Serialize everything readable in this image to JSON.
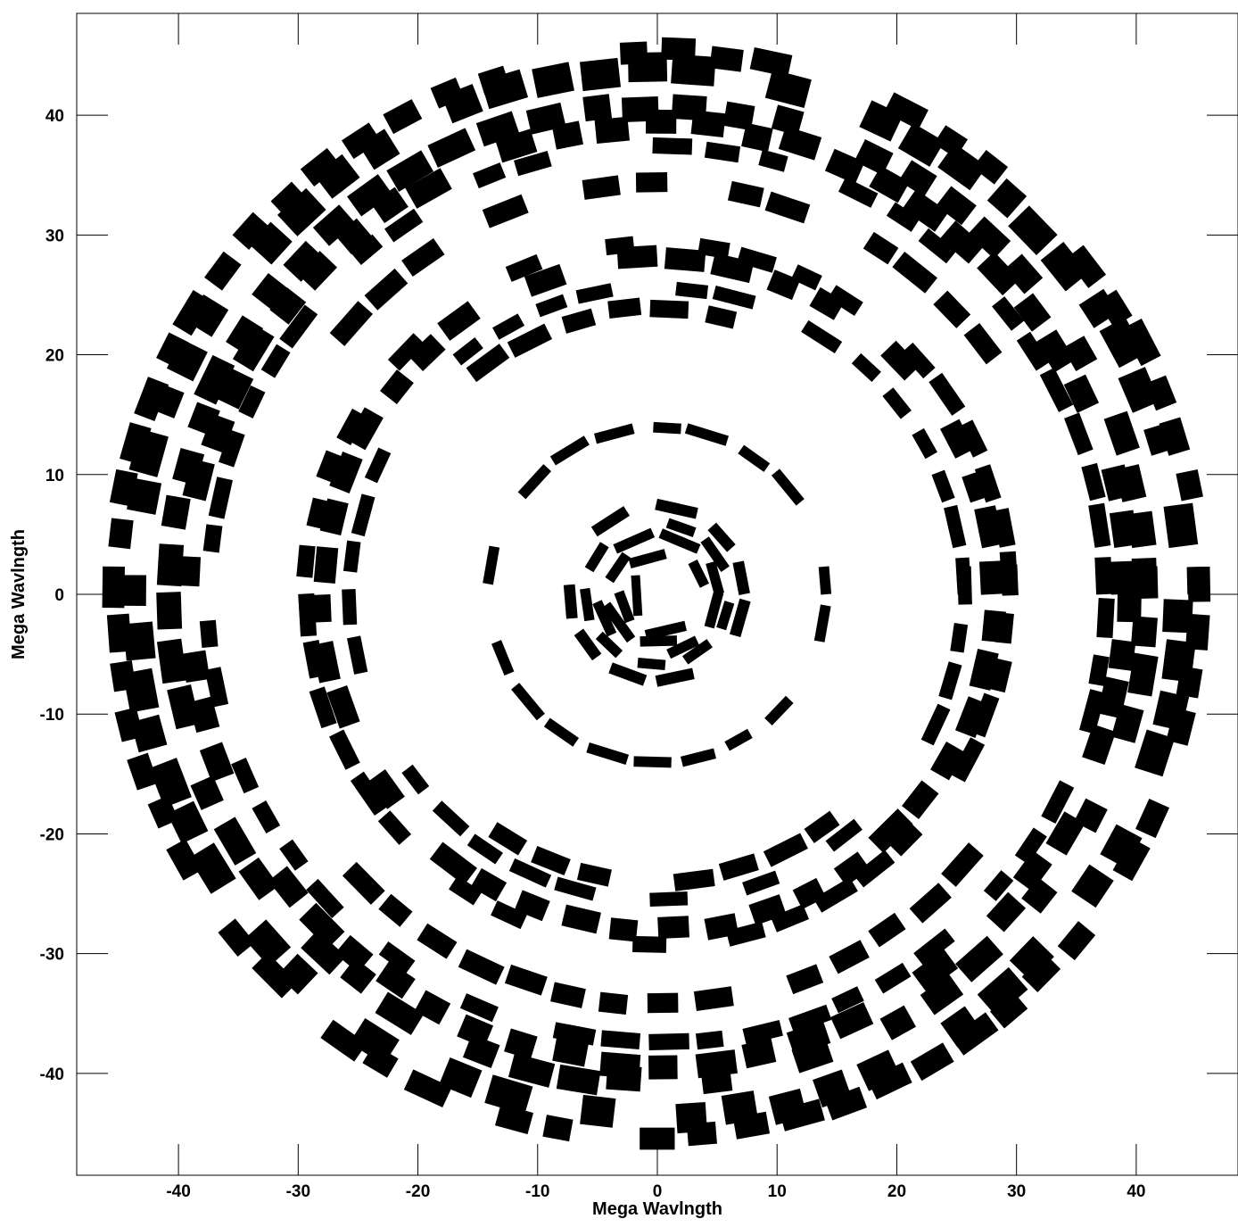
{
  "chart_data": {
    "type": "scatter",
    "title": "",
    "xlabel": "Mega Wavlngth",
    "ylabel": "Mega Wavlngth",
    "xlim": [
      -48.5,
      48.5
    ],
    "ylim": [
      -48.5,
      48.5
    ],
    "grid": false,
    "legend": "none",
    "x_ticks": [
      -40,
      -30,
      -20,
      -10,
      0,
      10,
      20,
      30,
      40
    ],
    "y_ticks": [
      -40,
      -30,
      -20,
      -10,
      0,
      10,
      20,
      30,
      40
    ],
    "x_tick_labels": [
      "-40",
      "-30",
      "-20",
      "-10",
      "0",
      "10",
      "20",
      "30",
      "40"
    ],
    "y_tick_labels": [
      "-40",
      "-30",
      "-20",
      "-10",
      "0",
      "10",
      "20",
      "30",
      "40"
    ],
    "series": [
      {
        "marker_color": "#000000",
        "tracks": [
          {
            "r": 1.8,
            "width": 0.4,
            "thickness": 0.35,
            "arcs": [
              [
                0,
                360
              ]
            ]
          },
          {
            "r": 3.0,
            "width": 0.5,
            "thickness": 0.35,
            "arcs": [
              [
                0,
                150
              ],
              [
                175,
                360
              ]
            ]
          },
          {
            "r": 3.9,
            "width": 0.5,
            "thickness": 0.35,
            "arcs": [
              [
                10,
                170
              ],
              [
                190,
                345
              ]
            ]
          },
          {
            "r": 4.9,
            "width": 0.5,
            "thickness": 0.35,
            "arcs": [
              [
                0,
                120
              ],
              [
                140,
                330
              ]
            ]
          },
          {
            "r": 5.9,
            "width": 0.5,
            "thickness": 0.35,
            "arcs": [
              [
                20,
                200
              ],
              [
                215,
                350
              ]
            ]
          },
          {
            "r": 7.2,
            "width": 0.6,
            "thickness": 0.35,
            "arcs": [
              [
                0,
                95
              ],
              [
                110,
                290
              ],
              [
                300,
                360
              ]
            ]
          },
          {
            "r": 14.0,
            "width": 0.6,
            "thickness": 0.28,
            "arcs": [
              [
                0,
                360
              ]
            ]
          },
          {
            "r": 23.9,
            "width": 1.0,
            "thickness": 0.45,
            "arcs": [
              [
                55,
                125
              ],
              [
                235,
                305
              ]
            ]
          },
          {
            "r": 25.6,
            "width": 0.8,
            "thickness": 0.35,
            "arcs": [
              [
                0,
                360
              ]
            ]
          },
          {
            "r": 28.0,
            "width": 1.4,
            "thickness": 0.4,
            "arcs": [
              [
                0,
                360
              ]
            ]
          },
          {
            "r": 29.3,
            "width": 1.0,
            "thickness": 0.35,
            "arcs": [
              [
                0,
                360
              ]
            ]
          },
          {
            "r": 34.2,
            "width": 1.2,
            "thickness": 0.45,
            "arcs": [
              [
                35,
                140
              ],
              [
                215,
                320
              ]
            ]
          },
          {
            "r": 37.5,
            "width": 1.0,
            "thickness": 0.35,
            "arcs": [
              [
                0,
                360
              ]
            ]
          },
          {
            "r": 39.2,
            "width": 1.6,
            "thickness": 0.4,
            "arcs": [
              [
                0,
                360
              ]
            ]
          },
          {
            "r": 40.8,
            "width": 1.6,
            "thickness": 0.45,
            "arcs": [
              [
                0,
                360
              ]
            ]
          },
          {
            "r": 43.8,
            "width": 2.0,
            "thickness": 0.45,
            "arcs": [
              [
                0,
                360
              ]
            ]
          },
          {
            "r": 45.3,
            "width": 1.4,
            "thickness": 0.45,
            "arcs": [
              [
                0,
                360
              ]
            ]
          }
        ]
      }
    ]
  }
}
